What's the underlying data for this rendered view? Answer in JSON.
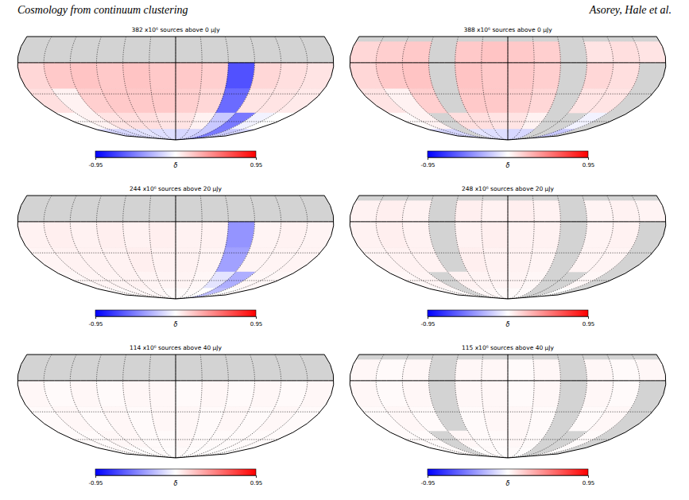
{
  "header": {
    "left": "Cosmology from continuum clustering",
    "right": "Asorey, Hale et al."
  },
  "chart_data": [
    {
      "type": "heatmap",
      "title": "382 x10⁶ sources above 0 μJy",
      "lon_edges": [
        -180,
        -150,
        -120,
        -90,
        -60,
        -30,
        0,
        30,
        60,
        90,
        120,
        150,
        180
      ],
      "lat_edges": [
        25,
        20,
        0,
        -25,
        -50,
        -70,
        -90
      ],
      "cells": [
        [
          null,
          null,
          null,
          null,
          null,
          null,
          null,
          null,
          null,
          null,
          null,
          null
        ],
        [
          null,
          null,
          null,
          null,
          null,
          null,
          null,
          null,
          null,
          null,
          null,
          null
        ],
        [
          0.15,
          0.2,
          0.22,
          0.2,
          0.22,
          0.2,
          0.2,
          0.18,
          -0.65,
          0.15,
          0.12,
          0.1
        ],
        [
          0.12,
          0.05,
          0.18,
          0.2,
          0.2,
          0.2,
          0.18,
          0.15,
          -0.55,
          0.1,
          0.1,
          0.08
        ],
        [
          0.02,
          0.05,
          0.1,
          0.12,
          0.12,
          0.1,
          0.1,
          0.05,
          -0.2,
          -0.5,
          -0.05,
          0.0
        ],
        [
          -0.15,
          -0.15,
          -0.12,
          -0.1,
          -0.12,
          -0.12,
          -0.15,
          -0.15,
          -0.2,
          -0.5,
          -0.2,
          -0.15
        ]
      ],
      "colorbar": {
        "range": [
          -0.95,
          0.95
        ],
        "ticks": [
          -0.95,
          0.95
        ],
        "label": "δ"
      }
    },
    {
      "type": "heatmap",
      "title": "388 x10⁶ sources above 0 μJy",
      "lon_edges": [
        -180,
        -150,
        -120,
        -90,
        -60,
        -30,
        0,
        30,
        60,
        90,
        120,
        150,
        180
      ],
      "lat_edges": [
        25,
        20,
        0,
        -25,
        -50,
        -70,
        -90
      ],
      "cells": [
        [
          null,
          null,
          null,
          null,
          null,
          null,
          null,
          null,
          null,
          null,
          null,
          null
        ],
        [
          0.15,
          0.18,
          0.2,
          null,
          0.2,
          0.22,
          0.2,
          0.18,
          null,
          0.1,
          0.12,
          0.1
        ],
        [
          0.15,
          0.2,
          0.22,
          null,
          0.22,
          0.2,
          0.2,
          0.18,
          null,
          0.15,
          0.12,
          null
        ],
        [
          0.1,
          0.05,
          0.18,
          null,
          0.2,
          0.2,
          0.18,
          0.15,
          null,
          0.1,
          0.1,
          null
        ],
        [
          0.02,
          0.05,
          null,
          0.12,
          0.12,
          0.1,
          0.1,
          0.05,
          null,
          null,
          -0.05,
          null
        ],
        [
          -0.15,
          -0.15,
          null,
          -0.1,
          -0.12,
          -0.12,
          -0.15,
          -0.15,
          null,
          null,
          -0.2,
          null
        ]
      ],
      "colorbar": {
        "range": [
          -0.95,
          0.95
        ],
        "ticks": [
          -0.95,
          0.95
        ],
        "label": "δ"
      }
    },
    {
      "type": "heatmap",
      "title": "244 x10⁶ sources above 20 μJy",
      "lon_edges": [
        -180,
        -150,
        -120,
        -90,
        -60,
        -30,
        0,
        30,
        60,
        90,
        120,
        150,
        180
      ],
      "lat_edges": [
        25,
        20,
        0,
        -25,
        -50,
        -70,
        -90
      ],
      "cells": [
        [
          null,
          null,
          null,
          null,
          null,
          null,
          null,
          null,
          null,
          null,
          null,
          null
        ],
        [
          null,
          null,
          null,
          null,
          null,
          null,
          null,
          null,
          null,
          null,
          null,
          null
        ],
        [
          0.05,
          0.06,
          0.05,
          0.06,
          0.05,
          0.06,
          0.05,
          0.05,
          -0.4,
          0.04,
          0.05,
          0.04
        ],
        [
          0.04,
          0.05,
          0.05,
          0.05,
          0.06,
          0.05,
          0.05,
          0.04,
          -0.35,
          0.04,
          0.04,
          0.04
        ],
        [
          0.03,
          0.04,
          0.04,
          0.05,
          0.04,
          0.04,
          0.04,
          0.03,
          -0.1,
          -0.3,
          0.03,
          0.03
        ],
        [
          0.02,
          0.02,
          0.03,
          0.03,
          0.03,
          0.02,
          0.02,
          0.02,
          0.0,
          -0.25,
          0.0,
          0.02
        ]
      ],
      "colorbar": {
        "range": [
          -0.95,
          0.95
        ],
        "ticks": [
          -0.95,
          0.95
        ],
        "label": "δ"
      }
    },
    {
      "type": "heatmap",
      "title": "248 x10⁶ sources above 20 μJy",
      "lon_edges": [
        -180,
        -150,
        -120,
        -90,
        -60,
        -30,
        0,
        30,
        60,
        90,
        120,
        150,
        180
      ],
      "lat_edges": [
        25,
        20,
        0,
        -25,
        -50,
        -70,
        -90
      ],
      "cells": [
        [
          null,
          null,
          null,
          null,
          null,
          null,
          null,
          null,
          null,
          null,
          null,
          null
        ],
        [
          0.05,
          0.06,
          0.05,
          null,
          0.06,
          0.05,
          0.06,
          0.05,
          null,
          0.04,
          0.05,
          0.04
        ],
        [
          0.05,
          0.06,
          0.05,
          null,
          0.05,
          0.06,
          0.05,
          0.05,
          null,
          0.04,
          0.05,
          null
        ],
        [
          0.04,
          0.05,
          0.05,
          null,
          0.06,
          0.05,
          0.05,
          0.04,
          null,
          0.04,
          0.04,
          null
        ],
        [
          0.03,
          0.04,
          null,
          0.05,
          0.04,
          0.04,
          0.04,
          0.03,
          null,
          null,
          0.03,
          null
        ],
        [
          0.02,
          0.02,
          null,
          0.03,
          0.03,
          0.02,
          0.02,
          0.02,
          null,
          null,
          0.0,
          null
        ]
      ],
      "colorbar": {
        "range": [
          -0.95,
          0.95
        ],
        "ticks": [
          -0.95,
          0.95
        ],
        "label": "δ"
      }
    },
    {
      "type": "heatmap",
      "title": "114 x10⁶ sources above 40 μJy",
      "lon_edges": [
        -180,
        -150,
        -120,
        -90,
        -60,
        -30,
        0,
        30,
        60,
        90,
        120,
        150,
        180
      ],
      "lat_edges": [
        25,
        20,
        0,
        -25,
        -50,
        -70,
        -90
      ],
      "cells": [
        [
          null,
          null,
          null,
          null,
          null,
          null,
          null,
          null,
          null,
          null,
          null,
          null
        ],
        [
          null,
          null,
          null,
          null,
          null,
          null,
          null,
          null,
          null,
          null,
          null,
          null
        ],
        [
          0.03,
          0.02,
          0.03,
          0.02,
          0.03,
          0.03,
          0.02,
          0.03,
          0.02,
          0.03,
          0.02,
          0.03
        ],
        [
          0.02,
          0.03,
          0.02,
          0.03,
          0.02,
          0.03,
          0.03,
          0.02,
          0.03,
          0.02,
          0.03,
          0.02
        ],
        [
          0.02,
          0.02,
          0.03,
          0.03,
          0.02,
          0.02,
          0.03,
          0.02,
          0.02,
          0.02,
          0.02,
          0.02
        ],
        [
          0.01,
          0.02,
          0.01,
          0.01,
          0.02,
          0.01,
          0.02,
          0.01,
          0.01,
          0.01,
          0.01,
          0.01
        ]
      ],
      "colorbar": {
        "range": [
          -0.95,
          0.95
        ],
        "ticks": [
          -0.95,
          0.95
        ],
        "label": "δ"
      }
    },
    {
      "type": "heatmap",
      "title": "115 x10⁶ sources above 40 μJy",
      "lon_edges": [
        -180,
        -150,
        -120,
        -90,
        -60,
        -30,
        0,
        30,
        60,
        90,
        120,
        150,
        180
      ],
      "lat_edges": [
        25,
        20,
        0,
        -25,
        -50,
        -70,
        -90
      ],
      "cells": [
        [
          null,
          null,
          null,
          null,
          null,
          null,
          null,
          null,
          null,
          null,
          null,
          null
        ],
        [
          0.03,
          0.02,
          0.03,
          null,
          0.03,
          0.03,
          0.02,
          0.03,
          null,
          0.03,
          0.02,
          0.03
        ],
        [
          0.03,
          0.02,
          0.03,
          null,
          0.03,
          0.03,
          0.02,
          0.03,
          null,
          0.03,
          0.02,
          null
        ],
        [
          0.02,
          0.03,
          0.02,
          null,
          0.02,
          0.03,
          0.03,
          0.02,
          null,
          0.02,
          0.03,
          null
        ],
        [
          0.02,
          0.02,
          null,
          0.03,
          0.02,
          0.02,
          0.03,
          0.02,
          null,
          null,
          0.02,
          null
        ],
        [
          0.01,
          0.02,
          null,
          0.01,
          0.02,
          0.01,
          0.02,
          0.01,
          null,
          null,
          0.01,
          null
        ]
      ],
      "colorbar": {
        "range": [
          -0.95,
          0.95
        ],
        "ticks": [
          -0.95,
          0.95
        ],
        "label": "δ"
      }
    }
  ]
}
